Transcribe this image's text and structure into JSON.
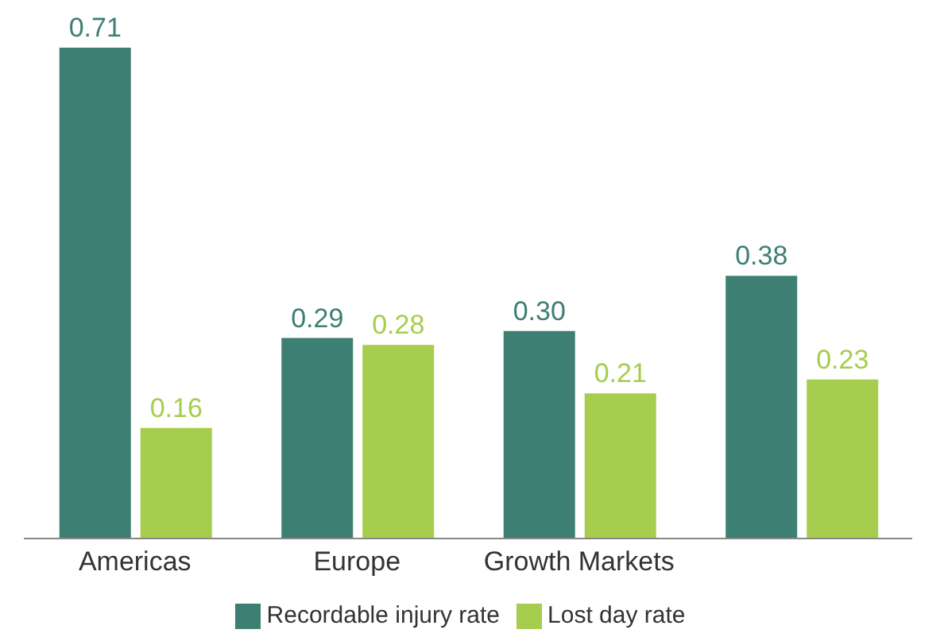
{
  "chart_data": {
    "type": "bar",
    "categories": [
      "Americas",
      "Europe",
      "Growth Markets",
      null
    ],
    "series": [
      {
        "name": "Recordable injury rate",
        "color": "#3e7f73",
        "values": [
          0.71,
          0.29,
          0.3,
          0.38
        ],
        "value_labels": [
          "0.71",
          "0.29",
          "0.30",
          "0.38"
        ]
      },
      {
        "name": "Lost day rate",
        "color": "#a6cd4e",
        "values": [
          0.16,
          0.28,
          0.21,
          0.23
        ],
        "value_labels": [
          "0.16",
          "0.28",
          "0.21",
          "0.23"
        ]
      }
    ],
    "legend": "bottom"
  }
}
